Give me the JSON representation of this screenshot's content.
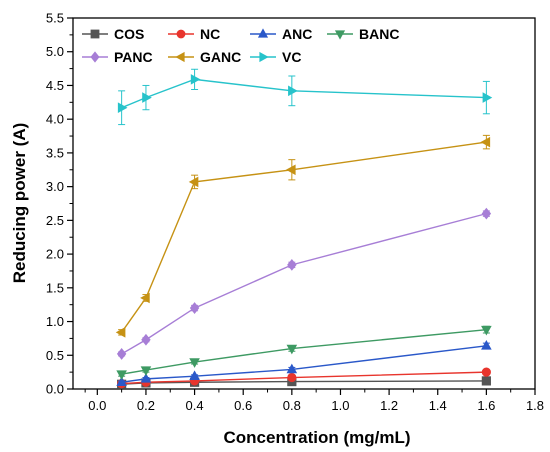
{
  "chart_data": {
    "type": "line",
    "xlabel": "Concentration (mg/mL)",
    "ylabel": "Reducing power (A)",
    "xlim": [
      -0.1,
      1.8
    ],
    "ylim": [
      0.0,
      5.5
    ],
    "xticks": [
      "0.0",
      "0.2",
      "0.4",
      "0.6",
      "0.8",
      "1.0",
      "1.2",
      "1.4",
      "1.6",
      "1.8"
    ],
    "yticks": [
      "0.0",
      "0.5",
      "1.0",
      "1.5",
      "2.0",
      "2.5",
      "3.0",
      "3.5",
      "4.0",
      "4.5",
      "5.0",
      "5.5"
    ],
    "grid": false,
    "legend_position": "top-left",
    "x": [
      0.1,
      0.2,
      0.4,
      0.8,
      1.6
    ],
    "series": [
      {
        "name": "COS",
        "color": "#555555",
        "marker": "square",
        "values": [
          0.07,
          0.09,
          0.1,
          0.11,
          0.12
        ],
        "errors": [
          0.02,
          0.02,
          0.02,
          0.02,
          0.02
        ]
      },
      {
        "name": "NC",
        "color": "#e8352d",
        "marker": "circle",
        "values": [
          0.08,
          0.1,
          0.12,
          0.17,
          0.25
        ],
        "errors": [
          0.02,
          0.02,
          0.02,
          0.03,
          0.03
        ]
      },
      {
        "name": "ANC",
        "color": "#2a58c9",
        "marker": "triangle-up",
        "values": [
          0.1,
          0.15,
          0.19,
          0.29,
          0.64
        ],
        "errors": [
          0.02,
          0.02,
          0.02,
          0.03,
          0.04
        ]
      },
      {
        "name": "BANC",
        "color": "#3e9a63",
        "marker": "triangle-down",
        "values": [
          0.22,
          0.28,
          0.4,
          0.6,
          0.88
        ],
        "errors": [
          0.03,
          0.03,
          0.03,
          0.04,
          0.05
        ]
      },
      {
        "name": "PANC",
        "color": "#a77ed6",
        "marker": "diamond",
        "values": [
          0.52,
          0.73,
          1.2,
          1.84,
          2.6
        ],
        "errors": [
          0.03,
          0.03,
          0.04,
          0.04,
          0.04
        ]
      },
      {
        "name": "GANC",
        "color": "#c69214",
        "marker": "triangle-left",
        "values": [
          0.84,
          1.35,
          3.07,
          3.25,
          3.66
        ],
        "errors": [
          0.04,
          0.05,
          0.1,
          0.15,
          0.1
        ]
      },
      {
        "name": "VC",
        "color": "#27c3cb",
        "marker": "triangle-right",
        "values": [
          4.17,
          4.32,
          4.59,
          4.42,
          4.32
        ],
        "errors": [
          0.25,
          0.18,
          0.15,
          0.22,
          0.24
        ]
      }
    ]
  }
}
